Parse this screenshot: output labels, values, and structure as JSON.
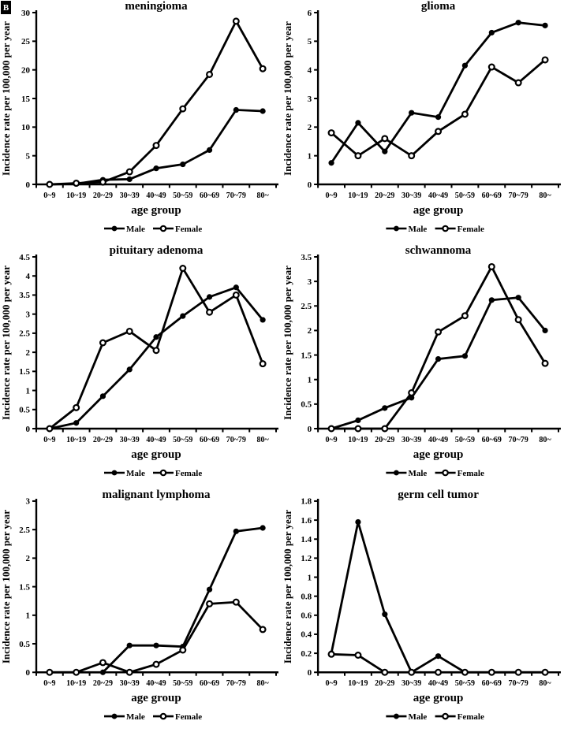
{
  "figure": {
    "panel_label": "B",
    "background": "#ffffff",
    "line_color": "#000000",
    "ylabel": "Incidence rate per 100,000 per year",
    "xlabel": "age group",
    "legend": [
      "Male",
      "Female"
    ]
  },
  "chart_data": [
    {
      "type": "line",
      "title": "meningioma",
      "xlabel": "age group",
      "ylabel": "Incidence rate per 100,000 per year",
      "categories": [
        "0~9",
        "10~19",
        "20~29",
        "30~39",
        "40~49",
        "50~59",
        "60~69",
        "70~79",
        "80~"
      ],
      "ylim": [
        0,
        30
      ],
      "ytick_step": 5,
      "grid": false,
      "legend_position": "bottom",
      "series": [
        {
          "name": "Male",
          "marker": "filled-circle",
          "values": [
            0,
            0.1,
            0.8,
            0.9,
            2.8,
            3.5,
            6.0,
            13.0,
            12.8
          ]
        },
        {
          "name": "Female",
          "marker": "open-circle",
          "values": [
            0,
            0.2,
            0.4,
            2.2,
            6.8,
            13.2,
            19.2,
            28.5,
            20.2
          ]
        }
      ]
    },
    {
      "type": "line",
      "title": "glioma",
      "xlabel": "age group",
      "ylabel": "Incidence rate per 100,000 per year",
      "categories": [
        "0~9",
        "10~19",
        "20~29",
        "30~39",
        "40~49",
        "50~59",
        "60~69",
        "70~79",
        "80~"
      ],
      "ylim": [
        0,
        6
      ],
      "ytick_step": 1,
      "grid": false,
      "legend_position": "bottom",
      "series": [
        {
          "name": "Male",
          "marker": "filled-circle",
          "values": [
            0.75,
            2.15,
            1.15,
            2.5,
            2.35,
            4.15,
            5.3,
            5.65,
            5.55
          ]
        },
        {
          "name": "Female",
          "marker": "open-circle",
          "values": [
            1.8,
            1.0,
            1.6,
            1.0,
            1.85,
            2.45,
            4.1,
            3.55,
            4.35
          ]
        }
      ]
    },
    {
      "type": "line",
      "title": "pituitary adenoma",
      "xlabel": "age group",
      "ylabel": "Incidence rate per 100,000 per year",
      "categories": [
        "0~9",
        "10~19",
        "20~29",
        "30~39",
        "40~49",
        "50~59",
        "60~69",
        "70~79",
        "80~"
      ],
      "ylim": [
        0,
        4.5
      ],
      "ytick_step": 0.5,
      "grid": false,
      "legend_position": "bottom",
      "series": [
        {
          "name": "Male",
          "marker": "filled-circle",
          "values": [
            0,
            0.15,
            0.85,
            1.55,
            2.4,
            2.95,
            3.45,
            3.7,
            2.85
          ]
        },
        {
          "name": "Female",
          "marker": "open-circle",
          "values": [
            0,
            0.55,
            2.25,
            2.55,
            2.05,
            4.2,
            3.05,
            3.5,
            1.7
          ]
        }
      ]
    },
    {
      "type": "line",
      "title": "schwannoma",
      "xlabel": "age group",
      "ylabel": "Incidence rate per 100,000 per year",
      "categories": [
        "0~9",
        "10~19",
        "20~29",
        "30~39",
        "40~49",
        "50~59",
        "60~69",
        "70~79",
        "80~"
      ],
      "ylim": [
        0,
        3.5
      ],
      "ytick_step": 0.5,
      "grid": false,
      "legend_position": "bottom",
      "series": [
        {
          "name": "Male",
          "marker": "filled-circle",
          "values": [
            0,
            0.17,
            0.42,
            0.63,
            1.42,
            1.48,
            2.62,
            2.67,
            2.0
          ]
        },
        {
          "name": "Female",
          "marker": "open-circle",
          "values": [
            0,
            0,
            0,
            0.73,
            1.97,
            2.3,
            3.3,
            2.22,
            1.33
          ]
        }
      ]
    },
    {
      "type": "line",
      "title": "malignant lymphoma",
      "xlabel": "age group",
      "ylabel": "Incidence rate per 100,000 per year",
      "categories": [
        "0~9",
        "10~19",
        "20~29",
        "30~39",
        "40~49",
        "50~59",
        "60~69",
        "70~79",
        "80~"
      ],
      "ylim": [
        0,
        3
      ],
      "ytick_step": 0.5,
      "grid": false,
      "legend_position": "bottom",
      "series": [
        {
          "name": "Male",
          "marker": "filled-circle",
          "values": [
            0,
            0,
            0,
            0.47,
            0.47,
            0.45,
            1.45,
            2.47,
            2.53
          ]
        },
        {
          "name": "Female",
          "marker": "open-circle",
          "values": [
            0,
            0,
            0.17,
            0,
            0.14,
            0.39,
            1.2,
            1.23,
            0.75
          ]
        }
      ]
    },
    {
      "type": "line",
      "title": "germ cell tumor",
      "xlabel": "age group",
      "ylabel": "Incidence rate per 100,000 per year",
      "categories": [
        "0~9",
        "10~19",
        "20~29",
        "30~39",
        "40~49",
        "50~59",
        "60~69",
        "70~79",
        "80~"
      ],
      "ylim": [
        0,
        1.8
      ],
      "ytick_step": 0.2,
      "grid": false,
      "legend_position": "bottom",
      "series": [
        {
          "name": "Male",
          "marker": "filled-circle",
          "values": [
            0.2,
            1.58,
            0.61,
            0,
            0.17,
            0,
            0,
            0,
            0
          ]
        },
        {
          "name": "Female",
          "marker": "open-circle",
          "values": [
            0.19,
            0.18,
            0,
            0,
            0,
            0,
            0,
            0,
            0
          ]
        }
      ]
    }
  ]
}
